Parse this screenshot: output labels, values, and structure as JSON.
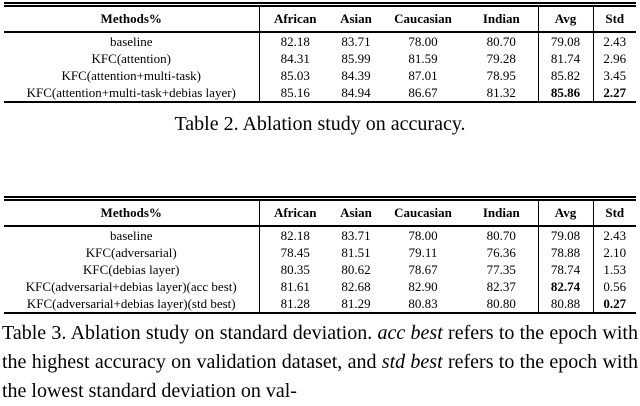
{
  "page": {
    "background": "#ffffff",
    "text_color": "#000000",
    "rule_color": "#000000"
  },
  "tables": [
    {
      "columns": [
        "Methods%",
        "African",
        "Asian",
        "Caucasian",
        "Indian",
        "Avg",
        "Std"
      ],
      "rows": [
        {
          "method": "baseline",
          "values": [
            "82.18",
            "83.71",
            "78.00",
            "80.70",
            "79.08",
            "2.43"
          ],
          "bold_value_indices": []
        },
        {
          "method": "KFC(attention)",
          "values": [
            "84.31",
            "85.99",
            "81.59",
            "79.28",
            "81.74",
            "2.96"
          ],
          "bold_value_indices": []
        },
        {
          "method": "KFC(attention+multi-task)",
          "values": [
            "85.03",
            "84.39",
            "87.01",
            "78.95",
            "85.82",
            "3.45"
          ],
          "bold_value_indices": []
        },
        {
          "method": "KFC(attention+multi-task+debias layer)",
          "values": [
            "85.16",
            "84.94",
            "86.67",
            "81.32",
            "85.86",
            "2.27"
          ],
          "bold_value_indices": [
            4,
            5
          ]
        }
      ],
      "caption_segments": [
        {
          "text": "Table 2. Ablation study on accuracy.",
          "italic": false
        }
      ]
    },
    {
      "columns": [
        "Methods%",
        "African",
        "Asian",
        "Caucasian",
        "Indian",
        "Avg",
        "Std"
      ],
      "rows": [
        {
          "method": "baseline",
          "values": [
            "82.18",
            "83.71",
            "78.00",
            "80.70",
            "79.08",
            "2.43"
          ],
          "bold_value_indices": []
        },
        {
          "method": "KFC(adversarial)",
          "values": [
            "78.45",
            "81.51",
            "79.11",
            "76.36",
            "78.88",
            "2.10"
          ],
          "bold_value_indices": []
        },
        {
          "method": "KFC(debias layer)",
          "values": [
            "80.35",
            "80.62",
            "78.67",
            "77.35",
            "78.74",
            "1.53"
          ],
          "bold_value_indices": []
        },
        {
          "method": "KFC(adversarial+debias layer)(acc best)",
          "values": [
            "81.61",
            "82.68",
            "82.90",
            "82.37",
            "82.74",
            "0.56"
          ],
          "bold_value_indices": [
            4
          ]
        },
        {
          "method": "KFC(adversarial+debias layer)(std best)",
          "values": [
            "81.28",
            "81.29",
            "80.83",
            "80.80",
            "80.88",
            "0.27"
          ],
          "bold_value_indices": [
            5
          ]
        }
      ],
      "caption_segments": [
        {
          "text": "Table 3. Ablation study on standard deviation. ",
          "italic": false
        },
        {
          "text": "acc best",
          "italic": true
        },
        {
          "text": " refers to the epoch with the highest accuracy on validation dataset, and ",
          "italic": false
        },
        {
          "text": "std best",
          "italic": true
        },
        {
          "text": " refers to the epoch with the lowest standard deviation on val-",
          "italic": false
        }
      ]
    }
  ]
}
